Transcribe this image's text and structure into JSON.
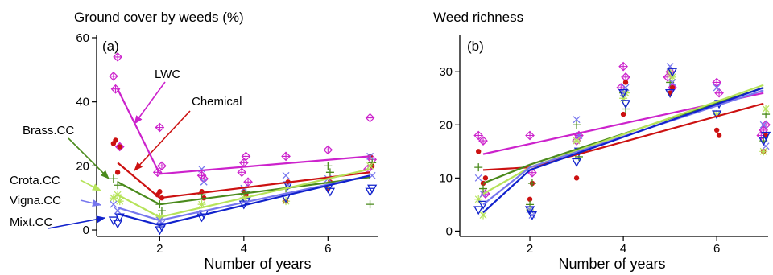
{
  "colors": {
    "LWC": "#cc22cc",
    "Chemical": "#cc1111",
    "Brass.CC": "#4a8a1c",
    "Crota.CC": "#b6e35a",
    "Vigna.CC": "#7777ee",
    "Mixt.CC": "#1122cc"
  },
  "chart_data": [
    {
      "type": "scatter",
      "panel_label": "(a)",
      "title": "Ground cover by weeds (%)",
      "xlabel": "Number of years",
      "ylabel": "",
      "xlim": [
        0.5,
        7.2
      ],
      "ylim": [
        -2,
        61
      ],
      "xticks": [
        2,
        4,
        6
      ],
      "yticks": [
        0,
        20,
        40,
        60
      ],
      "grid": false,
      "annotations": [
        "LWC",
        "Chemical",
        "Brass.CC",
        "Crota.CC",
        "Vigna.CC",
        "Mixt.CC"
      ],
      "series": [
        {
          "name": "LWC",
          "marker": "diamond-plus",
          "points": [
            [
              0.9,
              48
            ],
            [
              1.0,
              54
            ],
            [
              0.95,
              44
            ],
            [
              1.05,
              26
            ],
            [
              2.0,
              32
            ],
            [
              2.05,
              20
            ],
            [
              1.95,
              18
            ],
            [
              3.0,
              17
            ],
            [
              3.05,
              16
            ],
            [
              4.0,
              21
            ],
            [
              4.05,
              23
            ],
            [
              3.95,
              18
            ],
            [
              4.1,
              15
            ],
            [
              5.0,
              23
            ],
            [
              6.0,
              25
            ],
            [
              7.0,
              35
            ],
            [
              7.05,
              22
            ],
            [
              6.95,
              19
            ]
          ],
          "fit_x": [
            1,
            2,
            7
          ],
          "fit_y": [
            44,
            17.5,
            23
          ]
        },
        {
          "name": "Chemical",
          "marker": "dot",
          "points": [
            [
              0.9,
              27
            ],
            [
              0.95,
              28
            ],
            [
              1.05,
              26
            ],
            [
              1.0,
              18
            ],
            [
              2.0,
              12
            ],
            [
              2.05,
              10
            ],
            [
              1.95,
              11
            ],
            [
              3.0,
              12
            ],
            [
              3.05,
              10
            ],
            [
              4.0,
              12
            ],
            [
              4.05,
              11
            ],
            [
              5.0,
              9
            ],
            [
              5.05,
              15
            ],
            [
              6.0,
              13
            ],
            [
              6.05,
              15
            ],
            [
              7.0,
              23
            ],
            [
              7.05,
              20
            ]
          ],
          "fit_x": [
            1,
            2,
            7
          ],
          "fit_y": [
            21,
            10,
            18
          ]
        },
        {
          "name": "Brass.CC",
          "marker": "plus",
          "points": [
            [
              0.9,
              16
            ],
            [
              1.0,
              14
            ],
            [
              2.0,
              8
            ],
            [
              2.05,
              6
            ],
            [
              3.0,
              11
            ],
            [
              4.0,
              10
            ],
            [
              4.05,
              12
            ],
            [
              5.0,
              13
            ],
            [
              6.0,
              20
            ],
            [
              6.05,
              18
            ],
            [
              7.0,
              8
            ],
            [
              7.05,
              21
            ]
          ],
          "fit_x": [
            1,
            2,
            7
          ],
          "fit_y": [
            15,
            8,
            16.5
          ]
        },
        {
          "name": "Crota.CC",
          "marker": "asterisk",
          "points": [
            [
              0.9,
              10
            ],
            [
              1.0,
              11
            ],
            [
              1.05,
              9
            ],
            [
              2.0,
              4
            ],
            [
              3.0,
              8
            ],
            [
              4.0,
              10
            ],
            [
              5.0,
              9
            ],
            [
              6.0,
              14
            ],
            [
              7.0,
              20
            ]
          ],
          "fit_x": [
            1,
            2,
            7
          ],
          "fit_y": [
            11,
            4,
            19
          ]
        },
        {
          "name": "Vigna.CC",
          "marker": "cross",
          "points": [
            [
              0.9,
              8
            ],
            [
              1.0,
              6
            ],
            [
              2.0,
              3
            ],
            [
              2.05,
              2
            ],
            [
              3.0,
              19
            ],
            [
              3.05,
              15
            ],
            [
              4.0,
              13
            ],
            [
              5.0,
              17
            ],
            [
              5.05,
              14
            ],
            [
              6.0,
              16
            ],
            [
              7.0,
              23
            ],
            [
              7.05,
              17
            ]
          ],
          "fit_x": [
            1,
            2,
            7
          ],
          "fit_y": [
            7,
            3,
            17
          ]
        },
        {
          "name": "Mixt.CC",
          "marker": "triangle-down",
          "points": [
            [
              0.9,
              3
            ],
            [
              1.0,
              2
            ],
            [
              1.05,
              4
            ],
            [
              2.0,
              0
            ],
            [
              2.05,
              1
            ],
            [
              3.0,
              4
            ],
            [
              3.05,
              5
            ],
            [
              4.0,
              8
            ],
            [
              4.05,
              9
            ],
            [
              5.0,
              10
            ],
            [
              5.05,
              14
            ],
            [
              6.0,
              13
            ],
            [
              6.05,
              12
            ],
            [
              7.0,
              12
            ],
            [
              7.05,
              13
            ]
          ],
          "fit_x": [
            1,
            2,
            7
          ],
          "fit_y": [
            5,
            1.5,
            17
          ]
        }
      ]
    },
    {
      "type": "scatter",
      "panel_label": "(b)",
      "title": "Weed richness",
      "xlabel": "Number of years",
      "ylabel": "",
      "xlim": [
        0.5,
        7.1
      ],
      "ylim": [
        -1,
        37
      ],
      "xticks": [
        2,
        4,
        6
      ],
      "yticks": [
        0,
        10,
        20,
        30
      ],
      "grid": false,
      "series": [
        {
          "name": "LWC",
          "marker": "diamond-plus",
          "points": [
            [
              0.9,
              18
            ],
            [
              1.0,
              17
            ],
            [
              1.05,
              7
            ],
            [
              2.0,
              18
            ],
            [
              2.05,
              11
            ],
            [
              3.0,
              17
            ],
            [
              3.05,
              18
            ],
            [
              4.0,
              31
            ],
            [
              4.05,
              29
            ],
            [
              3.95,
              27
            ],
            [
              5.0,
              30
            ],
            [
              5.05,
              27
            ],
            [
              4.95,
              29
            ],
            [
              6.0,
              28
            ],
            [
              6.05,
              26
            ],
            [
              7.0,
              19
            ],
            [
              7.05,
              20
            ],
            [
              6.95,
              18
            ]
          ],
          "fit_x": [
            1,
            7
          ],
          "fit_y": [
            14.5,
            26
          ]
        },
        {
          "name": "Chemical",
          "marker": "dot",
          "points": [
            [
              0.9,
              15
            ],
            [
              1.0,
              9
            ],
            [
              1.05,
              10
            ],
            [
              2.0,
              6
            ],
            [
              2.05,
              9
            ],
            [
              3.0,
              10
            ],
            [
              3.05,
              15
            ],
            [
              4.0,
              22
            ],
            [
              4.05,
              28
            ],
            [
              5.0,
              26
            ],
            [
              5.05,
              27
            ],
            [
              6.0,
              19
            ],
            [
              6.05,
              18
            ],
            [
              7.0,
              15
            ],
            [
              7.05,
              18
            ]
          ],
          "fit_x": [
            1,
            2,
            7
          ],
          "fit_y": [
            11.5,
            12,
            24
          ]
        },
        {
          "name": "Brass.CC",
          "marker": "plus",
          "points": [
            [
              0.9,
              12
            ],
            [
              1.0,
              8
            ],
            [
              2.0,
              5
            ],
            [
              2.05,
              9
            ],
            [
              3.0,
              20
            ],
            [
              3.05,
              14
            ],
            [
              4.0,
              26
            ],
            [
              4.05,
              23
            ],
            [
              5.0,
              28
            ],
            [
              6.0,
              22
            ],
            [
              7.0,
              17
            ],
            [
              7.05,
              22
            ]
          ],
          "fit_x": [
            1,
            2,
            7
          ],
          "fit_y": [
            9,
            12.5,
            27
          ]
        },
        {
          "name": "Crota.CC",
          "marker": "asterisk",
          "points": [
            [
              0.9,
              6
            ],
            [
              1.0,
              3
            ],
            [
              2.0,
              4
            ],
            [
              3.0,
              17
            ],
            [
              4.0,
              25
            ],
            [
              4.05,
              26
            ],
            [
              5.0,
              30
            ],
            [
              5.05,
              29
            ],
            [
              6.0,
              22
            ],
            [
              7.0,
              15
            ],
            [
              7.05,
              23
            ]
          ],
          "fit_x": [
            1,
            2,
            7
          ],
          "fit_y": [
            7,
            12,
            27.5
          ]
        },
        {
          "name": "Vigna.CC",
          "marker": "cross",
          "points": [
            [
              0.9,
              10
            ],
            [
              1.0,
              7
            ],
            [
              2.0,
              4
            ],
            [
              2.05,
              3
            ],
            [
              3.0,
              21
            ],
            [
              3.05,
              18
            ],
            [
              4.0,
              26
            ],
            [
              4.05,
              27
            ],
            [
              5.0,
              31
            ],
            [
              5.05,
              28
            ],
            [
              6.0,
              27
            ],
            [
              7.0,
              20
            ],
            [
              7.05,
              16
            ]
          ],
          "fit_x": [
            1,
            2,
            7
          ],
          "fit_y": [
            5,
            12,
            26.5
          ]
        },
        {
          "name": "Mixt.CC",
          "marker": "triangle-down",
          "points": [
            [
              0.9,
              4
            ],
            [
              1.0,
              5
            ],
            [
              2.0,
              4
            ],
            [
              2.05,
              3
            ],
            [
              3.0,
              13
            ],
            [
              3.05,
              15
            ],
            [
              4.0,
              26
            ],
            [
              4.05,
              24
            ],
            [
              5.0,
              26
            ],
            [
              5.05,
              30
            ],
            [
              6.0,
              22
            ],
            [
              6.05,
              24
            ],
            [
              7.0,
              17
            ],
            [
              7.05,
              18
            ]
          ],
          "fit_x": [
            1,
            2,
            7
          ],
          "fit_y": [
            3.5,
            11.5,
            27
          ]
        }
      ]
    }
  ]
}
